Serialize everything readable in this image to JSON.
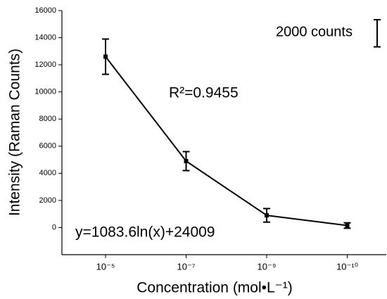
{
  "chart_data": {
    "type": "line",
    "xlabel": "Concentration (mol•L⁻¹)",
    "ylabel": "Intensity (Raman Counts)",
    "categories": [
      "10⁻⁵",
      "10⁻⁷",
      "10⁻⁹",
      "10⁻¹⁰"
    ],
    "series": [
      {
        "color": "#000000",
        "values": [
          12600,
          4900,
          900,
          150
        ],
        "errors": [
          1300,
          700,
          500,
          200
        ]
      }
    ],
    "ylim": [
      -2000,
      16000
    ],
    "yticks": [
      0,
      2000,
      4000,
      6000,
      8000,
      10000,
      12000,
      14000,
      16000
    ],
    "annotations": {
      "r2": "R²=0.9455",
      "equation": "y=1083.6ln(x)+24009"
    },
    "scale_bar": {
      "label": "2000 counts",
      "value": 2000
    }
  }
}
